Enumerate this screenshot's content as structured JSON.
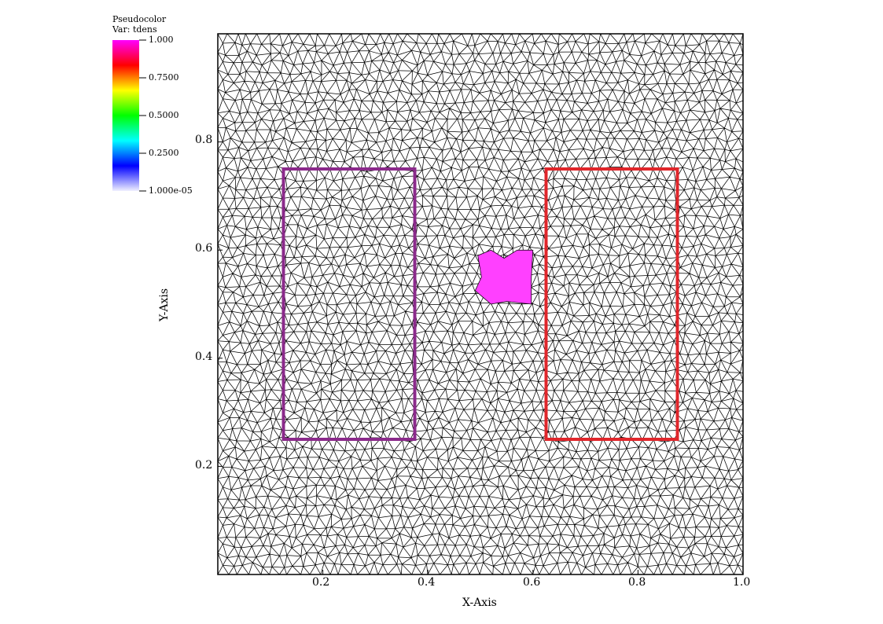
{
  "legend": {
    "title_line1": "Pseudocolor",
    "title_line2": "Var: tdens",
    "max_label": "1.000",
    "labels": [
      "1.000",
      "0.7500",
      "0.5000",
      "0.2500",
      "1.000e-05"
    ],
    "colormap": [
      "#f0f0ff",
      "#0000ff",
      "#00ffff",
      "#00ff00",
      "#ffff00",
      "#ff0000",
      "#ff00ff"
    ]
  },
  "colors": {
    "mesh_edge": "#000000",
    "left_box": "#8b2a8b",
    "right_box": "#e0262b",
    "high_tdens_fill": "#ff40ff"
  },
  "chart_data": {
    "type": "heatmap",
    "title": "",
    "xlabel": "X-Axis",
    "ylabel": "Y-Axis",
    "xlim": [
      0.0,
      1.0
    ],
    "ylim": [
      0.0,
      1.0
    ],
    "x_ticks": [
      0.2,
      0.4,
      0.6,
      0.8,
      1.0
    ],
    "y_ticks": [
      0.2,
      0.4,
      0.6,
      0.8
    ],
    "x_tick_labels": [
      "0.2",
      "0.4",
      "0.6",
      "0.8",
      "1.0"
    ],
    "y_tick_labels": [
      "0.2",
      "0.4",
      "0.6",
      "0.8"
    ],
    "mesh": "unstructured triangular mesh over unit square",
    "value_range": [
      1e-05,
      1.0
    ],
    "regions": [
      {
        "shape": "rectangle",
        "x": [
          0.125,
          0.375
        ],
        "y": [
          0.25,
          0.75
        ],
        "color": "purple"
      },
      {
        "shape": "rectangle",
        "x": [
          0.625,
          0.875
        ],
        "y": [
          0.25,
          0.75
        ],
        "color": "red"
      }
    ],
    "high_value_patch": {
      "x": [
        0.49,
        0.6
      ],
      "y": [
        0.5,
        0.6
      ],
      "value": 1.0
    }
  }
}
